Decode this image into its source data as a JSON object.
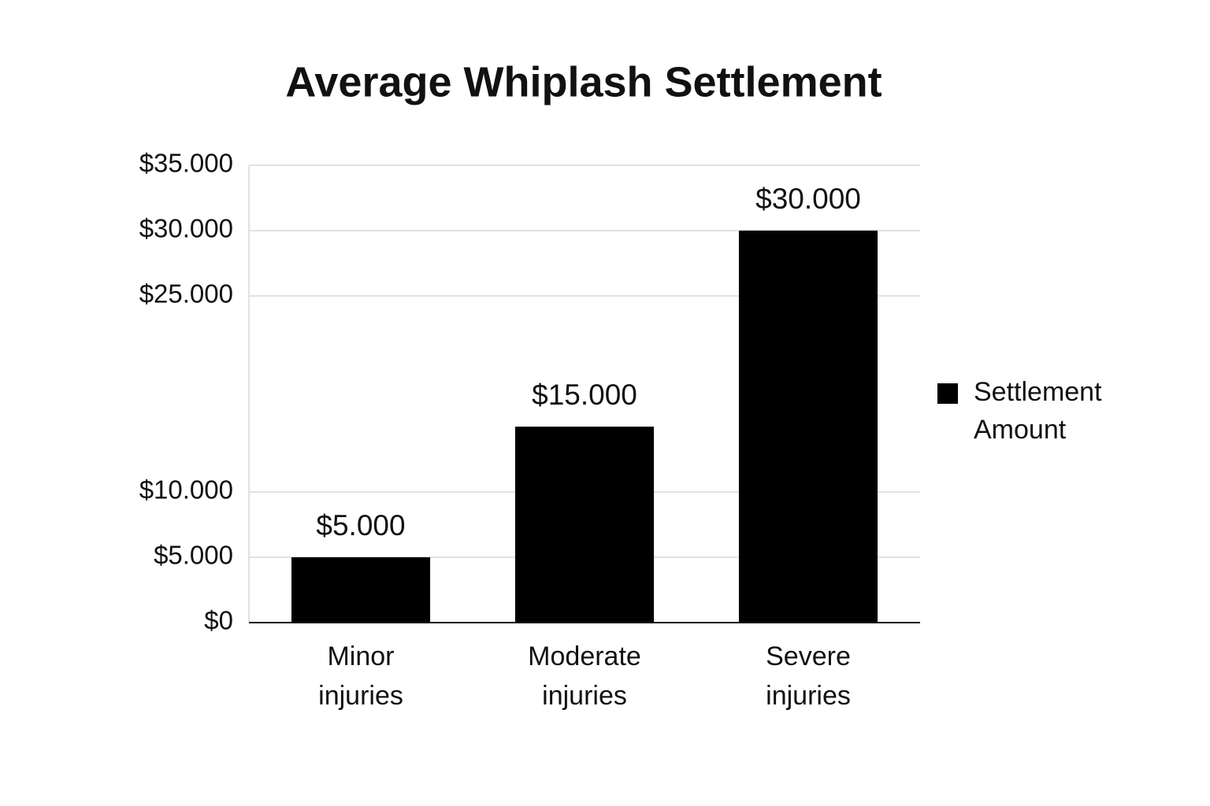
{
  "chart_data": {
    "type": "bar",
    "title": "Average Whiplash Settlement",
    "categories": [
      "Minor injuries",
      "Moderate injuries",
      "Severe injuries"
    ],
    "series": [
      {
        "name": "Settlement Amount",
        "color": "#000000",
        "values": [
          5000,
          15000,
          30000
        ],
        "value_labels": [
          "$5.000",
          "$15.000",
          "$30.000"
        ]
      }
    ],
    "ylim": [
      0,
      35000
    ],
    "yticks": [
      {
        "value": 0,
        "label": "$0"
      },
      {
        "value": 5000,
        "label": "$5.000"
      },
      {
        "value": 10000,
        "label": "$10.000"
      },
      {
        "value": 25000,
        "label": "$25.000"
      },
      {
        "value": 30000,
        "label": "$30.000"
      },
      {
        "value": 35000,
        "label": "$35.000"
      }
    ],
    "grid": true,
    "legend": "right"
  }
}
